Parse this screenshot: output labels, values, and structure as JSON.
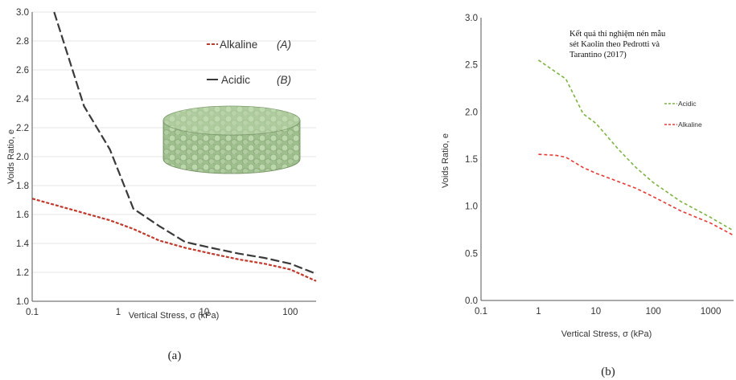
{
  "chart_data": [
    {
      "type": "line",
      "panel_label": "(a)",
      "xlabel": "Vertical Stress, σ (kPa)",
      "ylabel": "Voids Ratio, e",
      "xscale": "log",
      "xlim": [
        0.1,
        200
      ],
      "ylim": [
        1.0,
        3.0
      ],
      "xticks": [
        "0.1",
        "1",
        "10",
        "100"
      ],
      "xtick_values": [
        0.1,
        1,
        10,
        100
      ],
      "yticks": [
        "1.0",
        "1.2",
        "1.4",
        "1.6",
        "1.8",
        "2.0",
        "2.2",
        "2.4",
        "2.6",
        "2.8",
        "3.0"
      ],
      "ytick_values": [
        1.0,
        1.2,
        1.4,
        1.6,
        1.8,
        2.0,
        2.2,
        2.4,
        2.6,
        2.8,
        3.0
      ],
      "legend_placement": "top-right",
      "series": [
        {
          "name": "Alkaline",
          "legend_suffix": "(A)",
          "color": "#c0392b",
          "dash": "short-dashed",
          "x": [
            0.1,
            0.4,
            0.8,
            1.5,
            3,
            6,
            12,
            25,
            50,
            100,
            200
          ],
          "y": [
            1.71,
            1.61,
            1.56,
            1.5,
            1.42,
            1.37,
            1.33,
            1.29,
            1.26,
            1.22,
            1.14
          ]
        },
        {
          "name": "Acidic",
          "legend_suffix": "(B)",
          "color": "#3a3a3a",
          "dash": "long-dashed",
          "x": [
            0.18,
            0.4,
            0.8,
            1.5,
            3,
            6,
            12,
            25,
            50,
            100,
            200
          ],
          "y": [
            3.0,
            2.35,
            2.05,
            1.64,
            1.52,
            1.41,
            1.37,
            1.33,
            1.3,
            1.26,
            1.19
          ]
        }
      ]
    },
    {
      "type": "line",
      "panel_label": "(b)",
      "xlabel": "Vertical Stress, σ (kPa)",
      "ylabel": "Voids Ratio, e",
      "xscale": "log",
      "xlim": [
        0.1,
        2500
      ],
      "ylim": [
        0.0,
        3.0
      ],
      "xticks": [
        "0.1",
        "1",
        "10",
        "100",
        "1000"
      ],
      "xtick_values": [
        0.1,
        1,
        10,
        100,
        1000
      ],
      "yticks": [
        "0.0",
        "0.5",
        "1.0",
        "1.5",
        "2.0",
        "2.5",
        "3.0"
      ],
      "ytick_values": [
        0.0,
        0.5,
        1.0,
        1.5,
        2.0,
        2.5,
        3.0
      ],
      "annotation": [
        "Kết quả thí nghiệm nén mẫu",
        "sét Kaolin theo Pedrotti và",
        "Tarantino (2017)"
      ],
      "legend_placement": "right",
      "series": [
        {
          "name": "Acidic",
          "color": "#7cb342",
          "dash": "dashed",
          "x": [
            1,
            3,
            6,
            10,
            25,
            50,
            100,
            300,
            1000,
            2500
          ],
          "y": [
            2.55,
            2.35,
            1.98,
            1.88,
            1.6,
            1.41,
            1.25,
            1.05,
            0.88,
            0.74
          ]
        },
        {
          "name": "Alkaline",
          "color": "#e53935",
          "dash": "dashed",
          "x": [
            1,
            2,
            3,
            6,
            10,
            25,
            50,
            100,
            300,
            1000,
            2500
          ],
          "y": [
            1.55,
            1.54,
            1.52,
            1.41,
            1.35,
            1.26,
            1.19,
            1.1,
            0.95,
            0.82,
            0.69
          ]
        }
      ]
    }
  ]
}
